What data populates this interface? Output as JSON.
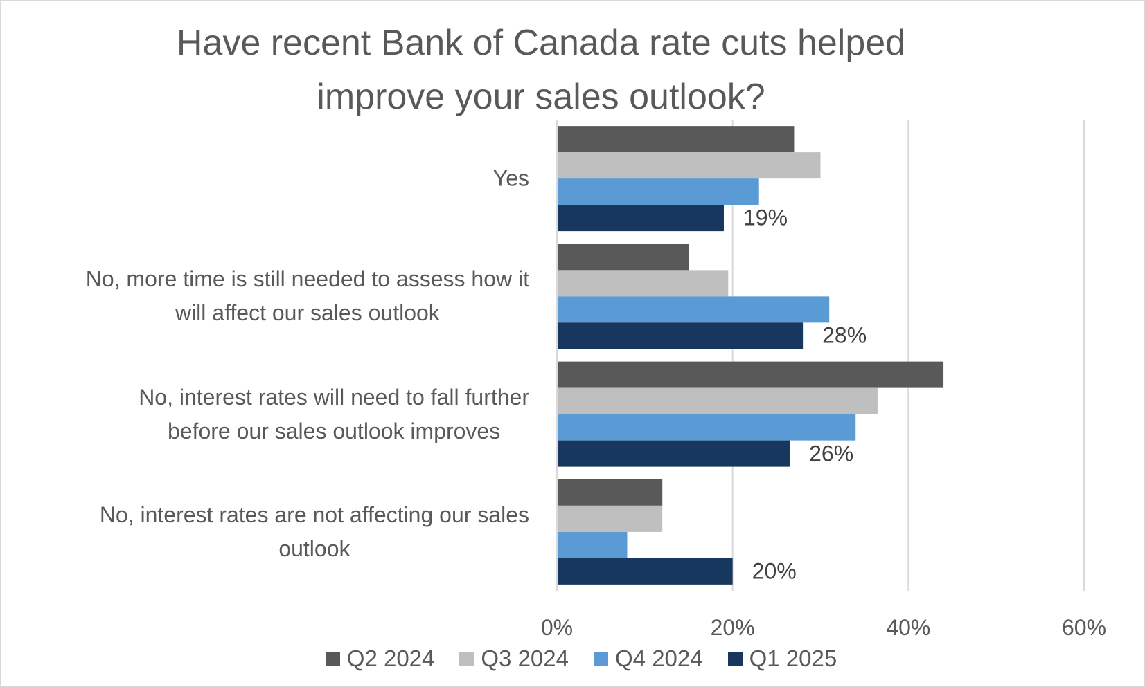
{
  "chart_data": {
    "type": "bar",
    "orientation": "horizontal",
    "title": "Have recent Bank of Canada rate cuts helped improve your sales outlook?",
    "title_lines": [
      "Have recent Bank of Canada rate cuts helped",
      "improve your sales outlook?"
    ],
    "categories": [
      [
        "Yes"
      ],
      [
        "No, more time is still needed to assess how it",
        "will affect our sales outlook"
      ],
      [
        "No, interest rates will need to fall further",
        "before our sales outlook improves"
      ],
      [
        "No, interest rates are not affecting our sales",
        "outlook"
      ]
    ],
    "series": [
      {
        "name": "Q2 2024",
        "color": "#595959",
        "values": [
          27,
          15,
          44,
          12
        ]
      },
      {
        "name": "Q3 2024",
        "color": "#bfbfbf",
        "values": [
          30,
          19.5,
          36.5,
          12
        ]
      },
      {
        "name": "Q4 2024",
        "color": "#5b9bd5",
        "values": [
          23,
          31,
          34,
          8
        ]
      },
      {
        "name": "Q1 2025",
        "color": "#17375e",
        "values": [
          19,
          28,
          26.5,
          20
        ]
      }
    ],
    "data_labels": {
      "series": "Q1 2025",
      "labels": [
        "19%",
        "28%",
        "26%",
        "20%"
      ]
    },
    "xlim": [
      0,
      60
    ],
    "x_ticks": [
      "0%",
      "20%",
      "40%",
      "60%"
    ],
    "x_tick_values": [
      0,
      20,
      40,
      60
    ],
    "grid": true,
    "legend_position": "bottom",
    "xlabel": "",
    "ylabel": ""
  }
}
